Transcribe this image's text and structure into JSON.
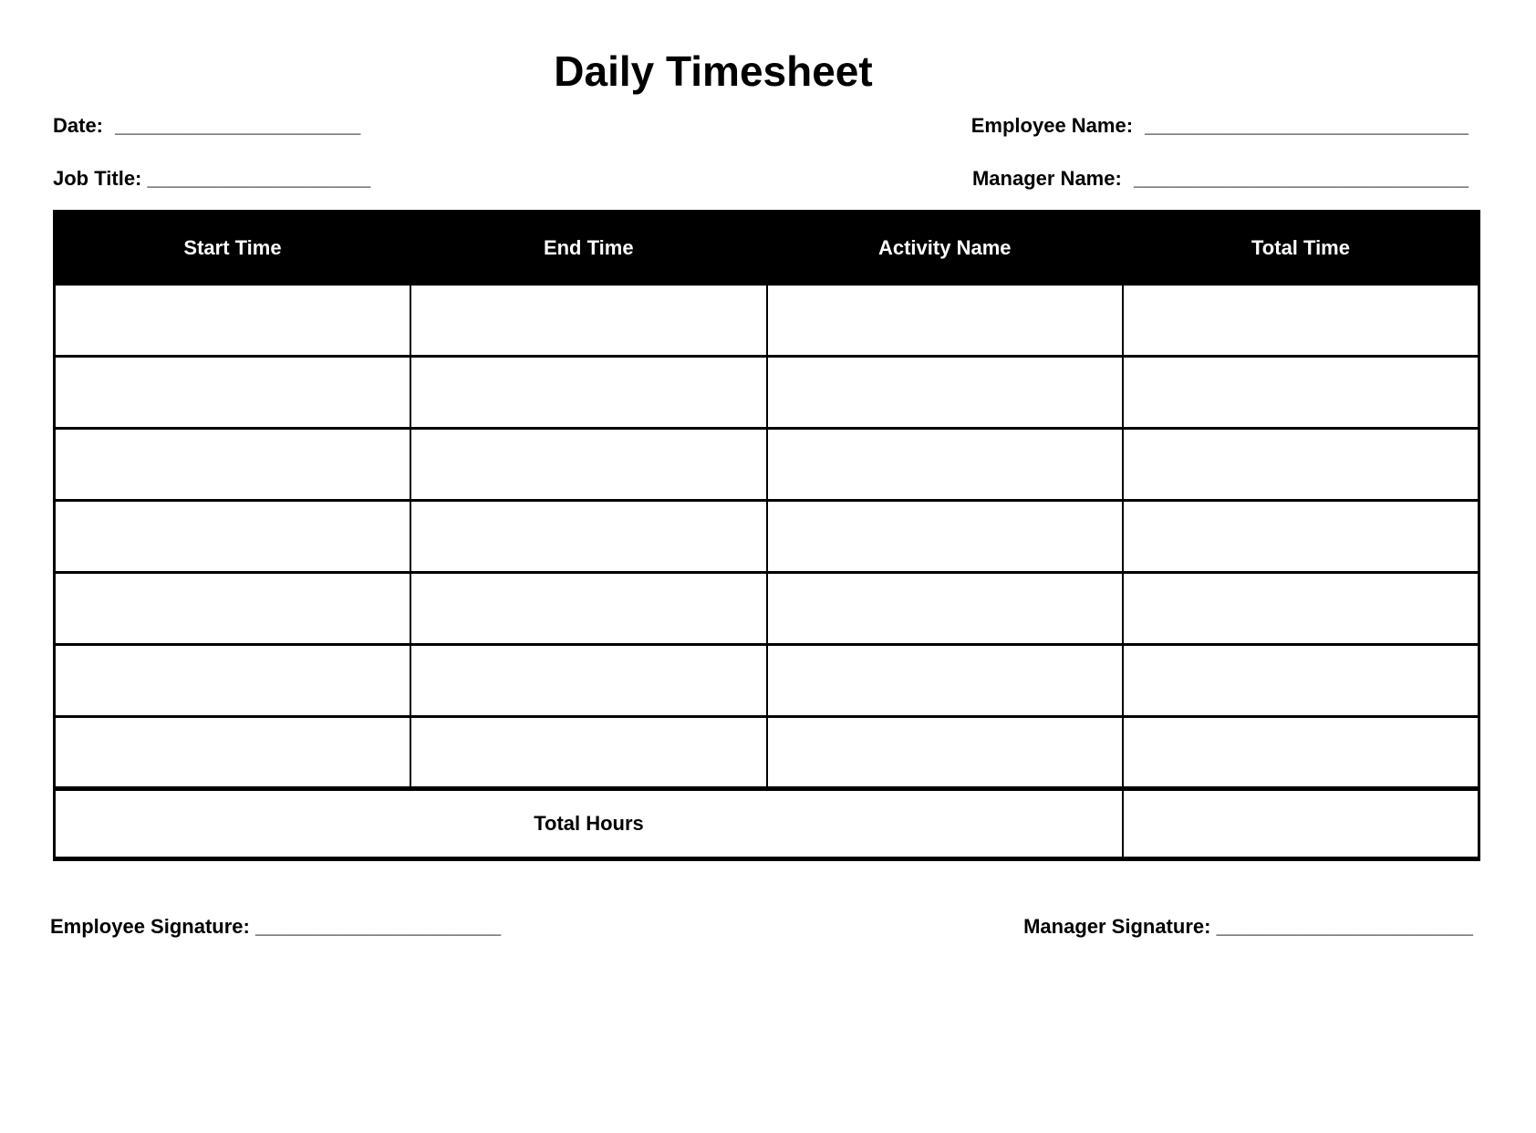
{
  "title": "Daily Timesheet",
  "fields": {
    "date": {
      "label": "Date:",
      "line": "______________________"
    },
    "employee_name": {
      "label": "Employee Name:",
      "line": "_____________________________"
    },
    "job_title": {
      "label": "Job Title:",
      "line": "____________________"
    },
    "manager_name": {
      "label": "Manager Name:",
      "line": "______________________________"
    }
  },
  "table": {
    "headers": [
      "Start Time",
      "End Time",
      "Activity Name",
      "Total Time"
    ],
    "rows": [
      [
        "",
        "",
        "",
        ""
      ],
      [
        "",
        "",
        "",
        ""
      ],
      [
        "",
        "",
        "",
        ""
      ],
      [
        "",
        "",
        "",
        ""
      ],
      [
        "",
        "",
        "",
        ""
      ],
      [
        "",
        "",
        "",
        ""
      ],
      [
        "",
        "",
        "",
        ""
      ]
    ],
    "footer": {
      "label": "Total Hours",
      "value": ""
    }
  },
  "signatures": {
    "employee": {
      "label": "Employee Signature:",
      "line": "______________________"
    },
    "manager": {
      "label": "Manager Signature:",
      "line": "_______________________"
    }
  },
  "colors": {
    "background": "#ffffff",
    "text": "#000000",
    "header_bg": "#000000",
    "header_text": "#ffffff"
  }
}
